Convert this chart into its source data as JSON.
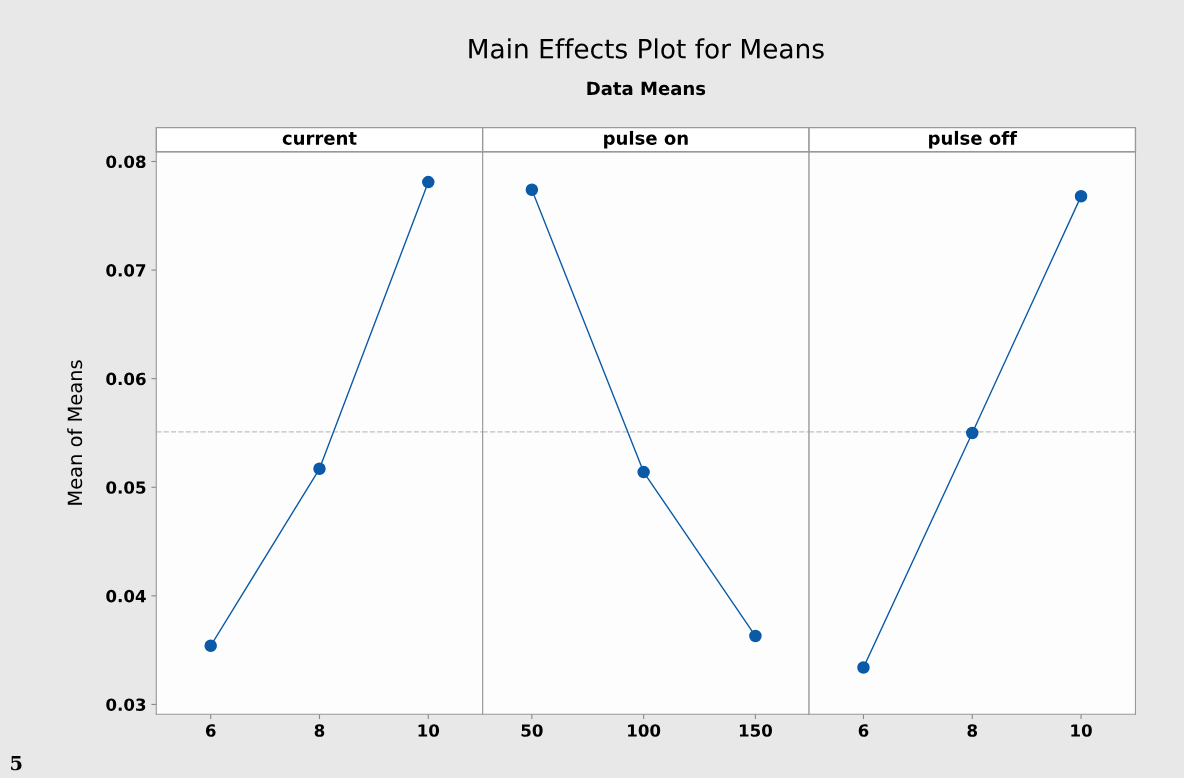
{
  "chart_data": [
    {
      "type": "line",
      "xlabel": "current",
      "ylabel": "Mean of Means",
      "x": [
        6,
        8,
        10
      ],
      "values": [
        0.0354,
        0.0517,
        0.0781
      ],
      "color": "#0a5aa8",
      "marker": "circle",
      "line_style": "solid",
      "xlim": [
        5,
        11
      ],
      "xticks": [
        6,
        8,
        10
      ],
      "ylim": [
        0.0291,
        0.0809
      ],
      "yticks": [
        0.03,
        0.04,
        0.05,
        0.06,
        0.07,
        0.08
      ],
      "ref_lines": [
        {
          "axis": "y",
          "value": 0.0551,
          "color": "#c0c0c0",
          "line_style": "dashed"
        }
      ],
      "grid": false,
      "annotations": [
        "5"
      ]
    },
    {
      "type": "line",
      "title": "Main Effects Plot for Means",
      "subtitle": "Data Means",
      "xlabel": "pulse on",
      "x": [
        50,
        100,
        150
      ],
      "values": [
        0.0774,
        0.0514,
        0.0363
      ],
      "color": "#0a5aa8",
      "marker": "circle",
      "line_style": "solid",
      "xlim": [
        28,
        174
      ],
      "xticks": [
        50,
        100,
        150
      ],
      "ylim": [
        0.0291,
        0.0809
      ],
      "tick_labels": "x",
      "ref_lines": [
        {
          "axis": "y",
          "value": 0.0551,
          "color": "#c0c0c0",
          "line_style": "dashed"
        }
      ],
      "grid": false
    },
    {
      "type": "line",
      "xlabel": "pulse off",
      "x": [
        6,
        8,
        10
      ],
      "values": [
        0.0334,
        0.055,
        0.0768
      ],
      "color": "#0a5aa8",
      "marker": "circle",
      "line_style": "solid",
      "xlim": [
        5,
        11
      ],
      "xticks": [
        6,
        8,
        10
      ],
      "ylim": [
        0.0291,
        0.0809
      ],
      "tick_labels": "x",
      "ref_lines": [
        {
          "axis": "y",
          "value": 0.0551,
          "color": "#c0c0c0",
          "line_style": "dashed"
        }
      ],
      "grid": false
    }
  ]
}
